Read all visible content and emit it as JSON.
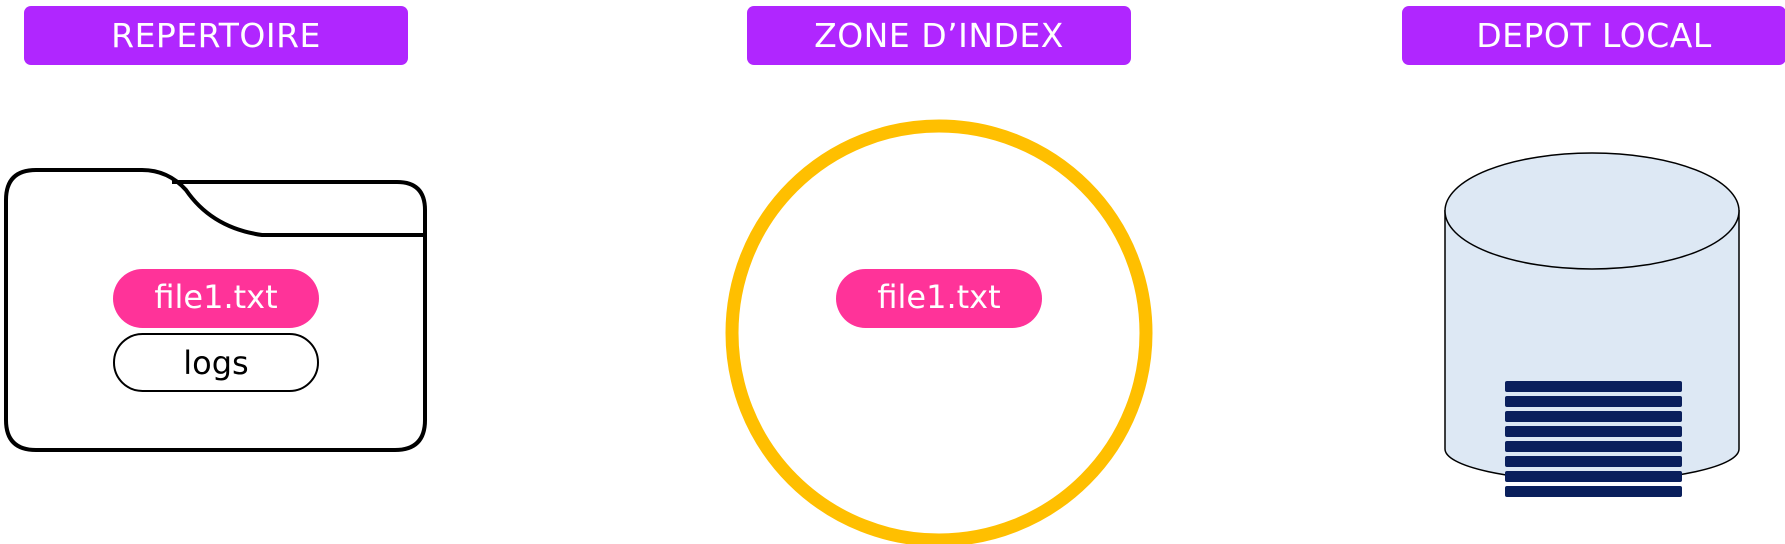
{
  "sections": {
    "working_directory": {
      "title": "REPERTOIRE",
      "files": [
        {
          "label": "file1.txt",
          "state": "highlighted"
        },
        {
          "label": "logs",
          "state": "plain"
        }
      ]
    },
    "index": {
      "title": "ZONE D’INDEX",
      "files": [
        {
          "label": "file1.txt",
          "state": "highlighted"
        }
      ]
    },
    "local_repo": {
      "title": "DEPOT LOCAL"
    }
  },
  "colors": {
    "header_bg": "#b026ff",
    "highlight_pill": "#ff3399",
    "index_ring": "#ffbf00",
    "repo_fill": "#dde8f4",
    "repo_lines": "#0a1f5c"
  },
  "icons": {
    "working_directory": "folder-icon",
    "index": "ring-icon",
    "local_repo": "database-icon"
  }
}
